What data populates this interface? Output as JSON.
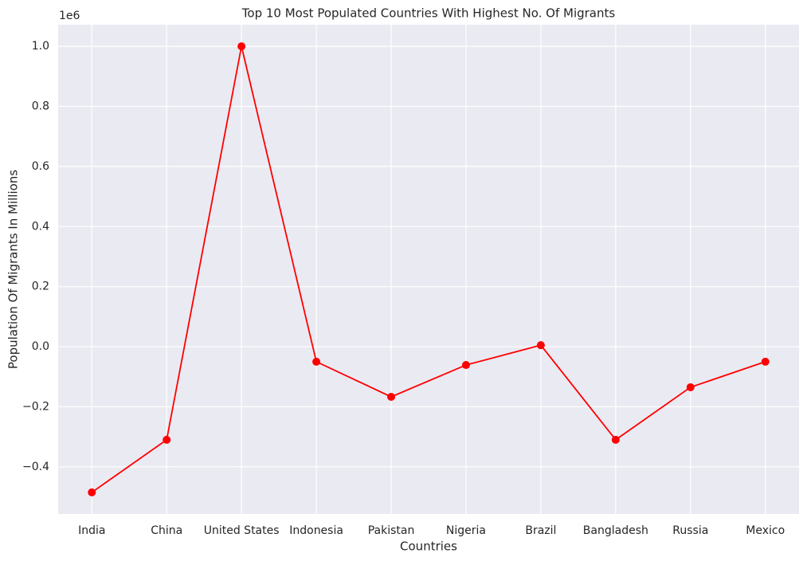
{
  "chart_data": {
    "type": "line",
    "title": "Top 10  Most Populated Countries With Highest No. Of Migrants",
    "x_label": "Countries",
    "y_label": "Population Of Migrants In Millions",
    "y_offset_label": "1e6",
    "categories": [
      "India",
      "China",
      "United States",
      "Indonesia",
      "Pakistan",
      "Nigeria",
      "Brazil",
      "Bangladesh",
      "Russia",
      "Mexico"
    ],
    "series": [
      {
        "color": "#ff0000",
        "values": [
          -485000,
          -310000,
          1000000,
          -50000,
          -167000,
          -61000,
          5000,
          -310000,
          -135000,
          -50000
        ]
      }
    ],
    "ylim": [
      -557000,
      1072000
    ],
    "yticks": [
      {
        "value": -400000,
        "label": "−0.4"
      },
      {
        "value": -200000,
        "label": "−0.2"
      },
      {
        "value": 0,
        "label": "0.0"
      },
      {
        "value": 200000,
        "label": "0.2"
      },
      {
        "value": 400000,
        "label": "0.4"
      },
      {
        "value": 600000,
        "label": "0.6"
      },
      {
        "value": 800000,
        "label": "0.8"
      },
      {
        "value": 1000000,
        "label": "1.0"
      }
    ],
    "grid": true
  }
}
